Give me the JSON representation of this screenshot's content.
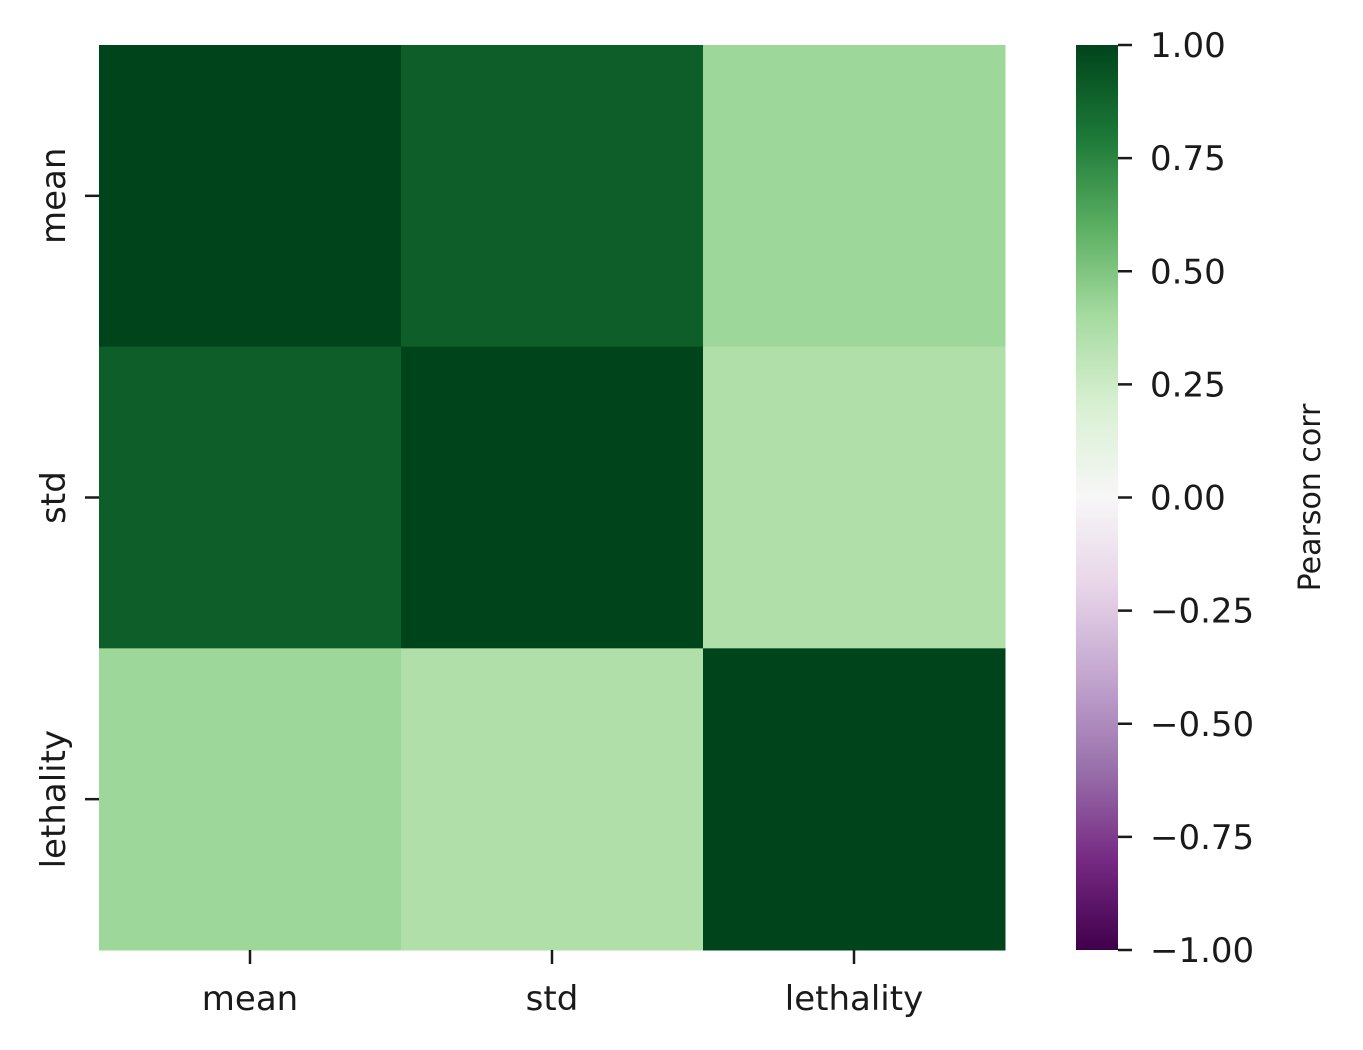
{
  "chart_data": {
    "type": "heatmap",
    "x_categories": [
      "mean",
      "std",
      "lethality"
    ],
    "y_categories": [
      "mean",
      "std",
      "lethality"
    ],
    "values": [
      [
        1.0,
        0.9,
        0.42
      ],
      [
        0.9,
        1.0,
        0.36
      ],
      [
        0.42,
        0.36,
        1.0
      ]
    ],
    "colormap": "PRGn",
    "vmin": -1.0,
    "vmax": 1.0,
    "colorbar": {
      "label": "Pearson corr",
      "ticks": [
        1.0,
        0.75,
        0.5,
        0.25,
        0.0,
        -0.25,
        -0.5,
        -0.75,
        -1.0
      ],
      "tick_labels": [
        "1.00",
        "0.75",
        "0.50",
        "0.25",
        "0.00",
        "−0.25",
        "−0.50",
        "−0.75",
        "−1.00"
      ]
    },
    "colormap_stops": [
      {
        "v": -1.0,
        "color": "#40004b"
      },
      {
        "v": -0.8,
        "color": "#762a83"
      },
      {
        "v": -0.6,
        "color": "#9970ab"
      },
      {
        "v": -0.4,
        "color": "#c2a5cf"
      },
      {
        "v": -0.2,
        "color": "#e7d4e8"
      },
      {
        "v": 0.0,
        "color": "#f7f7f7"
      },
      {
        "v": 0.2,
        "color": "#d9f0d3"
      },
      {
        "v": 0.4,
        "color": "#a6dba0"
      },
      {
        "v": 0.6,
        "color": "#5aae61"
      },
      {
        "v": 0.8,
        "color": "#1b7837"
      },
      {
        "v": 1.0,
        "color": "#00441b"
      }
    ]
  }
}
